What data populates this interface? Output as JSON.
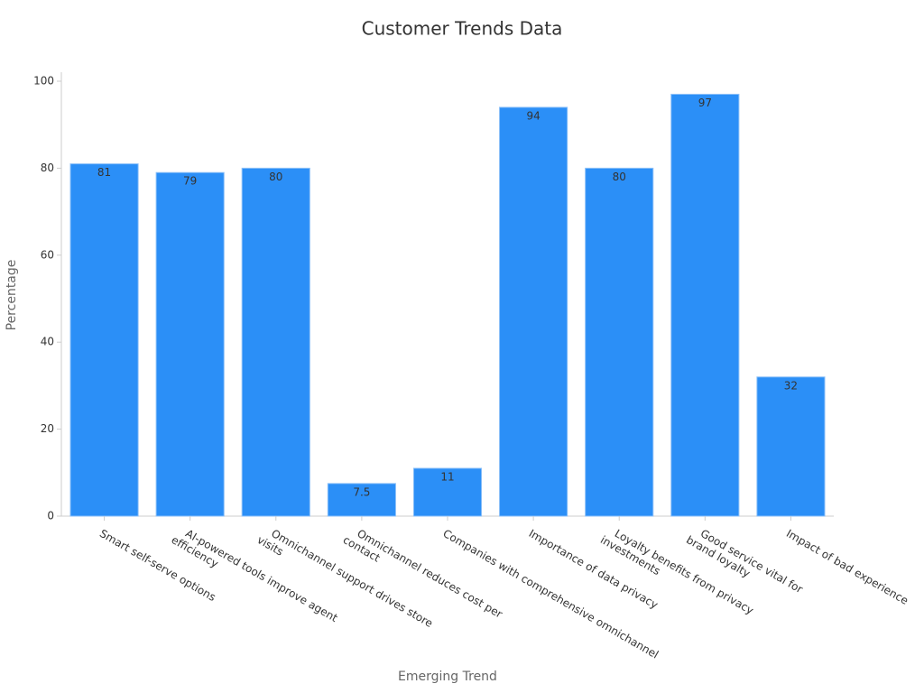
{
  "chart_data": {
    "type": "bar",
    "title": "Customer Trends Data",
    "x_label": "Emerging Trend",
    "y_label": "Percentage",
    "categories": [
      "Smart self-serve options",
      "AI-powered tools improve agent\nefficiency",
      "Omnichannel support drives store\nvisits",
      "Omnichannel reduces cost per\ncontact",
      "Companies with comprehensive omnichannel",
      "Importance of data privacy",
      "Loyalty benefits from privacy\ninvestments",
      "Good service vital for\nbrand loyalty",
      "Impact of bad experience"
    ],
    "values": [
      81,
      79,
      80,
      7.5,
      11,
      94,
      80,
      97,
      32
    ],
    "color": "#2b8ff7",
    "ylim": [
      0,
      100
    ],
    "yticks": [
      0,
      20,
      40,
      60,
      80,
      100
    ],
    "grid": false
  }
}
